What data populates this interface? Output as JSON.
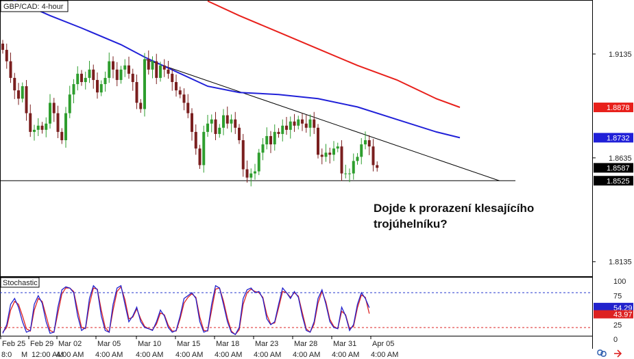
{
  "panel_title": "GBP/CAD: 4-hour",
  "stochastic_title": "Stochastic",
  "question": [
    "Dojde k prorazení klesajícího",
    "trojúhelníku?"
  ],
  "colors": {
    "candle_up": "#2e9e2e",
    "candle_down": "#7a1f1f",
    "ma_slow": "#e8201b",
    "ma_fast": "#2020d8",
    "trendline": "#000000",
    "stoch_k": "#2222cc",
    "stoch_d": "#dd2222",
    "stoch_upper": "#2233cc",
    "stoch_lower": "#dd2222"
  },
  "chart_data": {
    "type": "candlestick",
    "title": "GBP/CAD: 4-hour",
    "price_axis": {
      "min": 1.8065,
      "max": 1.9395,
      "tick_labels": [
        "1.9135",
        "1.8635",
        "1.8135"
      ],
      "tick_values": [
        1.9135,
        1.8635,
        1.8135
      ]
    },
    "price_tags": [
      {
        "label": "1.8878",
        "value": 1.8878,
        "bg": "#e8201b",
        "fg": "#ffffff"
      },
      {
        "label": "1.8732",
        "value": 1.8732,
        "bg": "#2020d8",
        "fg": "#ffffff"
      },
      {
        "label": "1.8587",
        "value": 1.8587,
        "bg": "#000000",
        "fg": "#ffffff"
      },
      {
        "label": "1.8525",
        "value": 1.8525,
        "bg": "#000000",
        "fg": "#ffffff"
      }
    ],
    "support_level": 1.8525,
    "trendline": {
      "start": [
        36,
        1.911
      ],
      "end": [
        126,
        1.8525
      ]
    },
    "date_labels": [
      "Feb 25",
      "Feb 29",
      "Mar 02",
      "Mar 05",
      "Mar 10",
      "Mar 15",
      "Mar 18",
      "Mar 23",
      "Mar 28",
      "Mar 31",
      "Apr 05"
    ],
    "time_labels": [
      "8:0",
      "M",
      "12:00 AM",
      "4:00 AM",
      "4:00 AM",
      "4:00 AM",
      "4:00 AM",
      "4:00 AM",
      "4:00 AM",
      "4:00 AM",
      "4:00 AM",
      "4:00 AM"
    ],
    "closes": [
      1.9155,
      1.91,
      1.902,
      1.896,
      1.892,
      1.898,
      1.885,
      1.876,
      1.877,
      1.879,
      1.877,
      1.88,
      1.89,
      1.885,
      1.876,
      1.872,
      1.885,
      1.894,
      1.899,
      1.904,
      1.9,
      1.902,
      1.906,
      1.901,
      1.895,
      1.899,
      1.902,
      1.91,
      1.906,
      1.901,
      1.906,
      1.908,
      1.904,
      1.9,
      1.89,
      1.887,
      1.911,
      1.906,
      1.91,
      1.902,
      1.908,
      1.906,
      1.904,
      1.9,
      1.896,
      1.894,
      1.89,
      1.885,
      1.876,
      1.868,
      1.86,
      1.876,
      1.88,
      1.882,
      1.875,
      1.878,
      1.884,
      1.88,
      1.882,
      1.878,
      1.872,
      1.858,
      1.854,
      1.856,
      1.857,
      1.866,
      1.87,
      1.874,
      1.87,
      1.876,
      1.875,
      1.879,
      1.877,
      1.881,
      1.879,
      1.882,
      1.88,
      1.878,
      1.882,
      1.878,
      1.865,
      1.864,
      1.866,
      1.865,
      1.868,
      1.869,
      1.856,
      1.856,
      1.856,
      1.862,
      1.864,
      1.87,
      1.872,
      1.869,
      1.86,
      1.8587
    ],
    "ma_fast": [
      [
        0,
        1.942
      ],
      [
        12,
        1.932
      ],
      [
        20,
        1.926
      ],
      [
        30,
        1.918
      ],
      [
        36,
        1.912
      ],
      [
        44,
        1.905
      ],
      [
        52,
        1.898
      ],
      [
        60,
        1.895
      ],
      [
        70,
        1.894
      ],
      [
        80,
        1.892
      ],
      [
        90,
        1.888
      ],
      [
        100,
        1.882
      ],
      [
        110,
        1.876
      ],
      [
        116,
        1.8732
      ]
    ],
    "ma_slow": [
      [
        52,
        1.939
      ],
      [
        60,
        1.932
      ],
      [
        70,
        1.924
      ],
      [
        80,
        1.916
      ],
      [
        90,
        1.908
      ],
      [
        100,
        1.901
      ],
      [
        110,
        1.892
      ],
      [
        116,
        1.8878
      ]
    ],
    "stochastic": {
      "y_tick_labels": [
        "100",
        "75",
        "54.29",
        "43.97",
        "25",
        "0"
      ],
      "upper_level": 80,
      "lower_level": 20,
      "k_label": "54.29",
      "d_label": "43.97",
      "k": [
        10,
        25,
        60,
        70,
        55,
        30,
        12,
        15,
        60,
        75,
        62,
        30,
        10,
        12,
        55,
        85,
        90,
        88,
        80,
        40,
        15,
        20,
        70,
        92,
        85,
        40,
        15,
        12,
        60,
        88,
        92,
        60,
        30,
        40,
        55,
        30,
        20,
        18,
        15,
        30,
        50,
        40,
        20,
        12,
        15,
        40,
        70,
        75,
        80,
        70,
        30,
        12,
        15,
        60,
        92,
        88,
        60,
        30,
        12,
        8,
        20,
        70,
        85,
        88,
        80,
        82,
        70,
        35,
        25,
        30,
        60,
        88,
        80,
        70,
        82,
        72,
        40,
        15,
        12,
        30,
        70,
        85,
        60,
        30,
        20,
        18,
        55,
        40,
        15,
        25,
        60,
        80,
        70,
        54.29
      ],
      "d": [
        12,
        20,
        50,
        65,
        60,
        40,
        18,
        14,
        50,
        70,
        65,
        40,
        15,
        12,
        45,
        78,
        88,
        88,
        82,
        50,
        20,
        18,
        60,
        88,
        86,
        50,
        20,
        12,
        50,
        82,
        90,
        68,
        35,
        38,
        52,
        35,
        22,
        18,
        16,
        26,
        45,
        42,
        24,
        14,
        14,
        35,
        62,
        72,
        78,
        72,
        38,
        15,
        14,
        50,
        86,
        88,
        66,
        36,
        14,
        8,
        16,
        60,
        80,
        86,
        82,
        80,
        72,
        42,
        26,
        28,
        54,
        82,
        80,
        72,
        80,
        74,
        46,
        18,
        12,
        26,
        62,
        82,
        64,
        34,
        22,
        18,
        48,
        42,
        18,
        22,
        54,
        76,
        72,
        43.97
      ]
    }
  }
}
